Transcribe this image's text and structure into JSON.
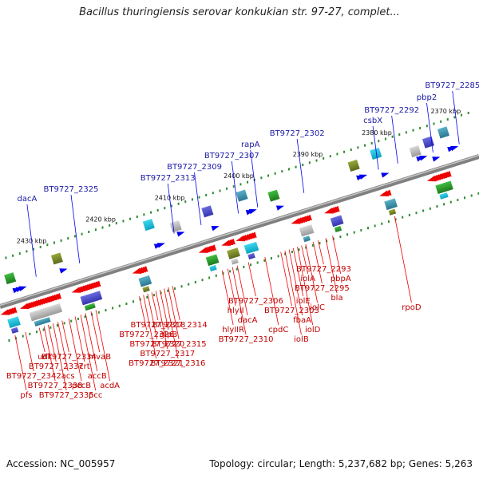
{
  "title": "Bacillus thuringiensis serovar konkukian str. 97-27, complet...",
  "footer": {
    "accession": "Accession: NC_005957",
    "topology": "Topology: circular; Length: 5,237,682 bp; Genes: 5,263"
  },
  "colors": {
    "forward_label": "#1a1aa6",
    "reverse_label": "#c00000",
    "forward_arrow": "#0000ee",
    "reverse_arrow": "#ee0000",
    "backbone": "#808080",
    "tick_dot": "#2e8b2e"
  },
  "ticks": [
    {
      "label": "2430 kbp",
      "pos": 2430
    },
    {
      "label": "2420 kbp",
      "pos": 2420
    },
    {
      "label": "2410 kbp",
      "pos": 2410
    },
    {
      "label": "2400 kbp",
      "pos": 2400
    },
    {
      "label": "2390 kbp",
      "pos": 2390
    },
    {
      "label": "2380 kbp",
      "pos": 2380
    },
    {
      "label": "2370 kbp",
      "pos": 2370
    }
  ],
  "forward_genes": [
    {
      "label": "dacA",
      "pos": 2430.8
    },
    {
      "label": "BT9727_2325",
      "pos": 2424.5
    },
    {
      "label": "BT9727_2313",
      "pos": 2410.8
    },
    {
      "label": "BT9727_2309",
      "pos": 2406.9
    },
    {
      "label": "BT9727_2307",
      "pos": 2401.5
    },
    {
      "label": "rapA",
      "pos": 2398.7
    },
    {
      "label": "BT9727_2302",
      "pos": 2392.0
    },
    {
      "label": "csbX",
      "pos": 2381.2
    },
    {
      "label": "BT9727_2292",
      "pos": 2378.4
    },
    {
      "label": "pbp2",
      "pos": 2373.3
    },
    {
      "label": "BT9727_2285",
      "pos": 2369.5
    }
  ],
  "reverse_genes": [
    {
      "label": "pfs",
      "pos": 2436.0
    },
    {
      "label": "BT9727_2342",
      "pos": 2434.5
    },
    {
      "label": "udk",
      "pos": 2432.5
    },
    {
      "label": "BT9727_2338",
      "pos": 2431.8
    },
    {
      "label": "BT9727_2337",
      "pos": 2431.2
    },
    {
      "label": "BT9727_2335",
      "pos": 2430.5
    },
    {
      "label": "acs",
      "pos": 2429.8
    },
    {
      "label": "BT9727_2334",
      "pos": 2429.2
    },
    {
      "label": "pccB",
      "pos": 2428.2
    },
    {
      "label": "crt",
      "pos": 2427.3
    },
    {
      "label": "pcc",
      "pos": 2426.5
    },
    {
      "label": "accB",
      "pos": 2425.8
    },
    {
      "label": "mvaB",
      "pos": 2425.0
    },
    {
      "label": "acdA",
      "pos": 2424.3
    },
    {
      "label": "BT9727_2326",
      "pos": 2418.0
    },
    {
      "label": "BT9727_2321",
      "pos": 2417.4
    },
    {
      "label": "BT9727_2320",
      "pos": 2416.8
    },
    {
      "label": "BT9727_2318",
      "pos": 2416.2
    },
    {
      "label": "BT9727_2317",
      "pos": 2415.6
    },
    {
      "label": "glpB",
      "pos": 2415.0
    },
    {
      "label": "BT9727_2316",
      "pos": 2414.4
    },
    {
      "label": "BT9727_2315",
      "pos": 2413.8
    },
    {
      "label": "BT9727_2314",
      "pos": 2413.2
    },
    {
      "label": "hlyIIR",
      "pos": 2406.0
    },
    {
      "label": "hlyII",
      "pos": 2405.2
    },
    {
      "label": "BT9727_2310",
      "pos": 2404.5
    },
    {
      "label": "dacA",
      "pos": 2403.8
    },
    {
      "label": "BT9727_2306",
      "pos": 2402.2
    },
    {
      "label": "cpdC",
      "pos": 2399.8
    },
    {
      "label": "BT9727_2303",
      "pos": 2397.5
    },
    {
      "label": "iolB",
      "pos": 2396.9
    },
    {
      "label": "fbaA",
      "pos": 2396.3
    },
    {
      "label": "iolE",
      "pos": 2395.7
    },
    {
      "label": "iolD",
      "pos": 2395.1
    },
    {
      "label": "iolA",
      "pos": 2394.5
    },
    {
      "label": "iolC",
      "pos": 2393.9
    },
    {
      "label": "BT9727_2295",
      "pos": 2392.8
    },
    {
      "label": "BT9727_2293",
      "pos": 2392.1
    },
    {
      "label": "bla",
      "pos": 2391.0
    },
    {
      "label": "pbpA",
      "pos": 2390.0
    },
    {
      "label": "rpoD",
      "pos": 2381.0
    }
  ],
  "forward_features": [
    {
      "pos": 2434.0,
      "len": 1.6,
      "name": "forward-arrow-group-1"
    },
    {
      "pos": 2427.0,
      "len": 0.6,
      "name": "forward-arrow-2"
    },
    {
      "pos": 2413.5,
      "len": 1.0,
      "name": "forward-arrow-3"
    },
    {
      "pos": 2410.0,
      "len": 0.4,
      "name": "forward-arrow-4"
    },
    {
      "pos": 2405.2,
      "len": 0.6,
      "name": "forward-arrow-5"
    },
    {
      "pos": 2400.0,
      "len": 0.8,
      "name": "forward-arrow-6"
    },
    {
      "pos": 2395.8,
      "len": 0.5,
      "name": "forward-arrow-7"
    },
    {
      "pos": 2384.0,
      "len": 1.2,
      "name": "forward-arrow-8"
    },
    {
      "pos": 2380.6,
      "len": 0.5,
      "name": "forward-arrow-9"
    },
    {
      "pos": 2375.3,
      "len": 1.2,
      "name": "forward-arrow-10"
    },
    {
      "pos": 2373.2,
      "len": 0.5,
      "name": "forward-arrow-11"
    },
    {
      "pos": 2370.8,
      "len": 0.8,
      "name": "forward-arrow-12"
    }
  ],
  "reverse_features": [
    {
      "pos": 2436.3,
      "len": 1.4,
      "name": "reverse-arrow-group-1"
    },
    {
      "pos": 2433.5,
      "len": 5.0,
      "name": "reverse-arrow-group-2"
    },
    {
      "pos": 2426.0,
      "len": 3.2,
      "name": "reverse-arrow-group-3"
    },
    {
      "pos": 2417.2,
      "len": 1.2,
      "name": "reverse-arrow-group-4"
    },
    {
      "pos": 2407.6,
      "len": 1.5,
      "name": "reverse-arrow-group-5"
    },
    {
      "pos": 2404.3,
      "len": 1.0,
      "name": "reverse-arrow-group-6"
    },
    {
      "pos": 2402.2,
      "len": 2.0,
      "name": "reverse-arrow-group-7"
    },
    {
      "pos": 2394.2,
      "len": 2.0,
      "name": "reverse-arrow-group-8"
    },
    {
      "pos": 2389.4,
      "len": 1.2,
      "name": "reverse-arrow-group-9"
    },
    {
      "pos": 2381.4,
      "len": 0.8,
      "name": "reverse-arrow-group-10"
    },
    {
      "pos": 2374.5,
      "len": 2.5,
      "name": "reverse-arrow-group-11"
    }
  ]
}
